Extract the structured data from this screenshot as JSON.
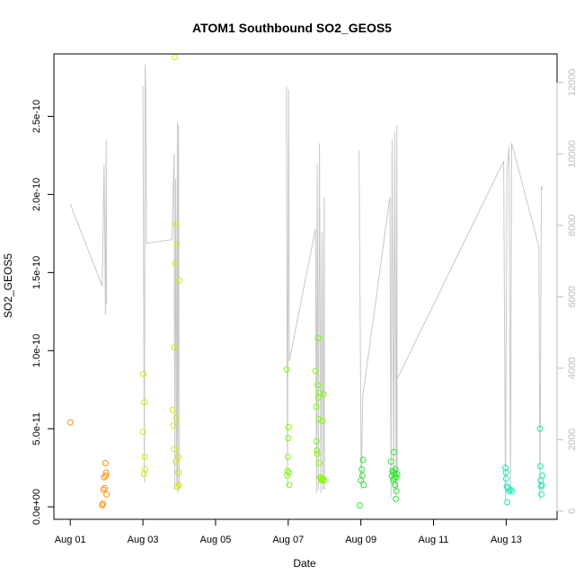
{
  "chart_data": {
    "type": "scatter",
    "title": "ATOM1 Southbound SO2_GEOS5",
    "xlabel": "Date",
    "ylabel": "SO2_GEOS5",
    "x_unit": "days since Aug 01",
    "xlim": [
      -0.45,
      13.4
    ],
    "ylim": [
      -8e-12,
      2.9e-10
    ],
    "y2lim": [
      -230,
      12800
    ],
    "x_ticks": [
      {
        "value": 0,
        "label": "Aug 01"
      },
      {
        "value": 2,
        "label": "Aug 03"
      },
      {
        "value": 4,
        "label": "Aug 05"
      },
      {
        "value": 6,
        "label": "Aug 07"
      },
      {
        "value": 8,
        "label": "Aug 09"
      },
      {
        "value": 10,
        "label": "Aug 11"
      },
      {
        "value": 12,
        "label": "Aug 13"
      }
    ],
    "y_ticks": [
      {
        "value": 0,
        "label": "0.0e+00"
      },
      {
        "value": 5e-11,
        "label": "5.0e-11"
      },
      {
        "value": 1e-10,
        "label": "1.0e-10"
      },
      {
        "value": 1.5e-10,
        "label": "1.5e-10"
      },
      {
        "value": 2e-10,
        "label": "2.0e-10"
      },
      {
        "value": 2.5e-10,
        "label": "2.5e-10"
      }
    ],
    "y2_ticks": [
      {
        "value": 0,
        "label": "0"
      },
      {
        "value": 2000,
        "label": "2000"
      },
      {
        "value": 4000,
        "label": "4000"
      },
      {
        "value": 6000,
        "label": "6000"
      },
      {
        "value": 8000,
        "label": "8000"
      },
      {
        "value": 10000,
        "label": "10000"
      },
      {
        "value": 12000,
        "label": "12000"
      }
    ],
    "altitude_color": "#c8c8c8",
    "grid": false,
    "legend": "none",
    "series": [
      {
        "color": "#ff8c00",
        "points": [
          [
            0.0,
            5.4e-11
          ],
          [
            0.88,
            1e-12
          ],
          [
            0.9,
            2e-12
          ],
          [
            0.91,
            1.1e-11
          ],
          [
            0.93,
            1.9e-11
          ],
          [
            0.95,
            1.2e-11
          ],
          [
            0.97,
            2.8e-11
          ],
          [
            0.98,
            2e-11
          ],
          [
            0.99,
            2.2e-11
          ],
          [
            1.0,
            8e-12
          ]
        ]
      },
      {
        "color": "#d8ea00",
        "points": [
          [
            2.0,
            4.8e-11
          ],
          [
            2.01,
            8.5e-11
          ],
          [
            2.04,
            6.7e-11
          ],
          [
            2.05,
            3.2e-11
          ],
          [
            2.06,
            2.4e-11
          ],
          [
            2.03,
            2.1e-11
          ],
          [
            2.82,
            6.2e-11
          ],
          [
            2.84,
            5.2e-11
          ],
          [
            2.86,
            3.7e-11
          ],
          [
            2.87,
            1.02e-10
          ],
          [
            2.88,
            2.88e-10
          ],
          [
            2.89,
            1.56e-10
          ],
          [
            2.9,
            2.9e-11
          ],
          [
            2.91,
            1.81e-10
          ],
          [
            2.92,
            5.7e-11
          ],
          [
            2.93,
            1.68e-10
          ],
          [
            2.95,
            1.3e-11
          ],
          [
            2.97,
            3.2e-11
          ],
          [
            2.98,
            2.2e-11
          ],
          [
            2.99,
            1.4e-11
          ],
          [
            3.0,
            1.45e-10
          ]
        ]
      },
      {
        "color": "#7cfc00",
        "points": [
          [
            5.96,
            8.8e-11
          ],
          [
            5.97,
            2e-11
          ],
          [
            5.98,
            2.3e-11
          ],
          [
            5.99,
            3.2e-11
          ],
          [
            6.0,
            4.4e-11
          ],
          [
            6.01,
            5.1e-11
          ],
          [
            6.03,
            1.4e-11
          ],
          [
            6.02,
            2.2e-11
          ],
          [
            6.75,
            8.7e-11
          ],
          [
            6.77,
            6.4e-11
          ],
          [
            6.78,
            4.2e-11
          ],
          [
            6.79,
            3.6e-11
          ],
          [
            6.8,
            3.4e-11
          ],
          [
            6.81,
            7.8e-11
          ],
          [
            6.82,
            1.08e-10
          ],
          [
            6.83,
            7e-11
          ],
          [
            6.84,
            5.6e-11
          ],
          [
            6.85,
            2.8e-11
          ],
          [
            6.86,
            7.3e-11
          ],
          [
            6.88,
            1.9e-11
          ],
          [
            6.9,
            1.8e-11
          ],
          [
            6.92,
            1.7e-11
          ],
          [
            6.94,
            5.5e-11
          ],
          [
            6.95,
            1.8e-11
          ],
          [
            6.97,
            7.2e-11
          ],
          [
            6.99,
            1.7e-11
          ]
        ]
      },
      {
        "color": "#2ee82e",
        "points": [
          [
            7.97,
            1e-12
          ],
          [
            8.0,
            1.7e-11
          ],
          [
            8.02,
            2.4e-11
          ],
          [
            8.04,
            2e-11
          ],
          [
            8.06,
            3e-11
          ],
          [
            8.08,
            1.4e-11
          ],
          [
            8.83,
            2.9e-11
          ],
          [
            8.85,
            2e-11
          ],
          [
            8.87,
            2.3e-11
          ],
          [
            8.89,
            1.7e-11
          ],
          [
            8.9,
            2.2e-11
          ],
          [
            8.91,
            3.5e-11
          ],
          [
            8.92,
            1.8e-11
          ],
          [
            8.93,
            2.1e-11
          ],
          [
            8.94,
            1.4e-11
          ],
          [
            8.95,
            2.4e-11
          ],
          [
            8.96,
            5e-12
          ],
          [
            8.97,
            1.9e-11
          ],
          [
            8.98,
            1e-11
          ],
          [
            9.0,
            2.1e-11
          ]
        ]
      },
      {
        "color": "#19e8b4",
        "points": [
          [
            11.98,
            2.5e-11
          ],
          [
            11.99,
            2.2e-11
          ],
          [
            12.0,
            1.8e-11
          ],
          [
            12.02,
            1.3e-11
          ],
          [
            12.03,
            3e-12
          ],
          [
            12.05,
            1.2e-11
          ],
          [
            12.08,
            1e-11
          ],
          [
            12.12,
            1.1e-11
          ],
          [
            12.16,
            1e-11
          ],
          [
            12.93,
            5e-11
          ],
          [
            12.94,
            2.6e-11
          ],
          [
            12.95,
            1.7e-11
          ],
          [
            12.96,
            1.3e-11
          ],
          [
            12.97,
            8e-12
          ],
          [
            12.98,
            1.4e-11
          ],
          [
            13.0,
            2e-11
          ]
        ]
      }
    ],
    "altitude_segments": [
      [
        [
          0.0,
          8600
        ],
        [
          0.88,
          6300
        ],
        [
          0.93,
          9700
        ],
        [
          0.97,
          5500
        ],
        [
          0.99,
          10400
        ],
        [
          1.0,
          5800
        ]
      ],
      [
        [
          2.0,
          11900
        ],
        [
          2.04,
          800
        ],
        [
          2.06,
          12500
        ],
        [
          2.08,
          11700
        ],
        [
          2.1,
          7500
        ],
        [
          2.8,
          7600
        ],
        [
          2.86,
          10000
        ],
        [
          2.88,
          600
        ],
        [
          2.9,
          9300
        ],
        [
          2.93,
          700
        ],
        [
          2.95,
          10900
        ],
        [
          2.96,
          500
        ],
        [
          2.98,
          10800
        ],
        [
          3.0,
          600
        ]
      ],
      [
        [
          5.95,
          11900
        ],
        [
          5.98,
          700
        ],
        [
          6.01,
          11800
        ],
        [
          6.03,
          4200
        ],
        [
          6.75,
          7900
        ],
        [
          6.78,
          500
        ],
        [
          6.8,
          9700
        ],
        [
          6.83,
          600
        ],
        [
          6.86,
          10300
        ],
        [
          6.9,
          500
        ],
        [
          6.93,
          7800
        ],
        [
          6.96,
          600
        ],
        [
          6.99,
          8800
        ],
        [
          7.0,
          600
        ]
      ],
      [
        [
          7.95,
          10100
        ],
        [
          7.99,
          3800
        ],
        [
          8.01,
          600
        ],
        [
          8.05,
          3200
        ],
        [
          8.8,
          8800
        ],
        [
          8.83,
          400
        ],
        [
          8.86,
          10400
        ],
        [
          8.9,
          600
        ],
        [
          8.93,
          10600
        ],
        [
          8.97,
          400
        ],
        [
          8.99,
          10800
        ],
        [
          9.0,
          600
        ]
      ],
      [
        [
          9.0,
          3700
        ],
        [
          11.93,
          9800
        ],
        [
          11.98,
          300
        ],
        [
          12.02,
          9500
        ],
        [
          12.08,
          10200
        ],
        [
          12.12,
          500
        ],
        [
          12.15,
          10300
        ],
        [
          12.9,
          7400
        ],
        [
          12.93,
          300
        ],
        [
          12.97,
          9100
        ],
        [
          13.0,
          9000
        ]
      ]
    ]
  }
}
